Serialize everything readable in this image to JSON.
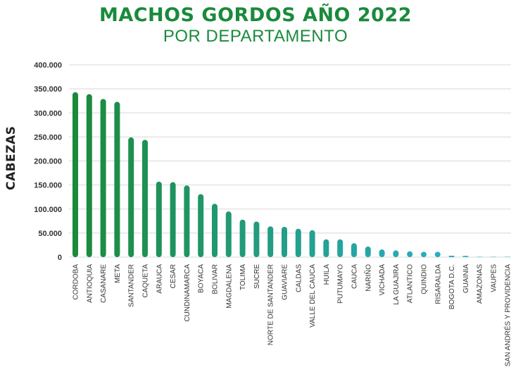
{
  "chart_data": {
    "type": "bar",
    "title": "MACHOS GORDOS AÑO 2022",
    "subtitle": "POR DEPARTAMENTO",
    "ylabel": "CABEZAS",
    "xlabel": "",
    "ylim": [
      0,
      400000
    ],
    "yticks": [
      "0",
      "50.000",
      "100.000",
      "150.000",
      "200.000",
      "250.000",
      "300.000",
      "350.000",
      "400.000"
    ],
    "grid": true,
    "colors": {
      "start": "#1b8a3a",
      "end": "#2bb4dc",
      "grid": "#d8d8d8",
      "title": "#1a8a3c"
    },
    "categories": [
      "CORDOBA",
      "ANTIOQUIA",
      "CASANARE",
      "META",
      "SANTANDER",
      "CAQUETA",
      "ARAUCA",
      "CESAR",
      "CUNDINAMARCA",
      "BOYACA",
      "BOLIVAR",
      "MAGDALENA",
      "TOLIMA",
      "SUCRE",
      "NORTE DE SANTANDER",
      "GUAVIARE",
      "CALDAS",
      "VALLE DEL CAUCA",
      "HUILA",
      "PUTUMAYO",
      "CAUCA",
      "NARIÑO",
      "VICHADA",
      "LA GUAJIRA",
      "ATLANTICO",
      "QUINDIO",
      "RISARALDA",
      "BOGOTA D.C.",
      "GUAINIA",
      "AMAZONAS",
      "VAUPES",
      "SAN ANDRÉS Y PROVIDENCIA"
    ],
    "values": [
      343000,
      339000,
      329000,
      323000,
      249000,
      244000,
      157000,
      156000,
      149000,
      131000,
      111000,
      95000,
      78000,
      74000,
      64000,
      63000,
      59000,
      56000,
      37000,
      37000,
      29000,
      22000,
      16000,
      14000,
      12000,
      11000,
      11000,
      3000,
      2500,
      500,
      200,
      100
    ]
  }
}
